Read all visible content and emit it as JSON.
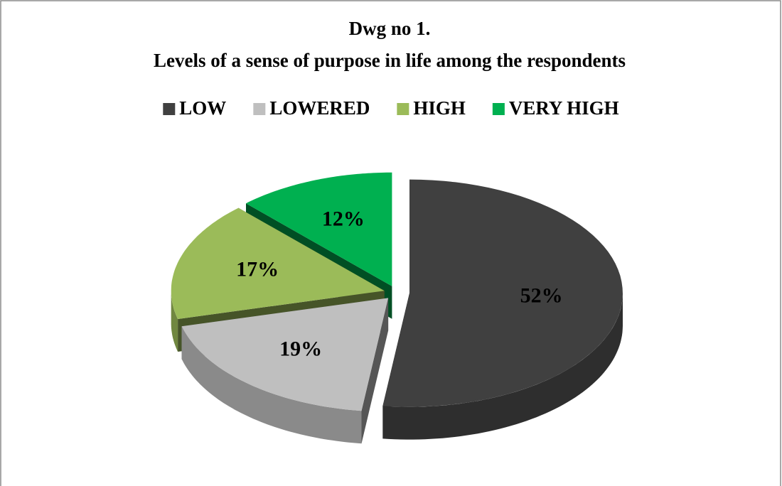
{
  "chart_data": {
    "type": "pie3d",
    "title": "Dwg no 1.",
    "subtitle": "Levels of a sense of purpose in life among the respondents",
    "categories": [
      "LOW",
      "LOWERED",
      "HIGH",
      "VERY HIGH"
    ],
    "values": [
      52,
      19,
      17,
      12
    ],
    "value_labels": [
      "52%",
      "19%",
      "17%",
      "12%"
    ],
    "colors": [
      "#404040",
      "#bfbfbf",
      "#9bbb59",
      "#00b050"
    ],
    "legend": "top"
  }
}
